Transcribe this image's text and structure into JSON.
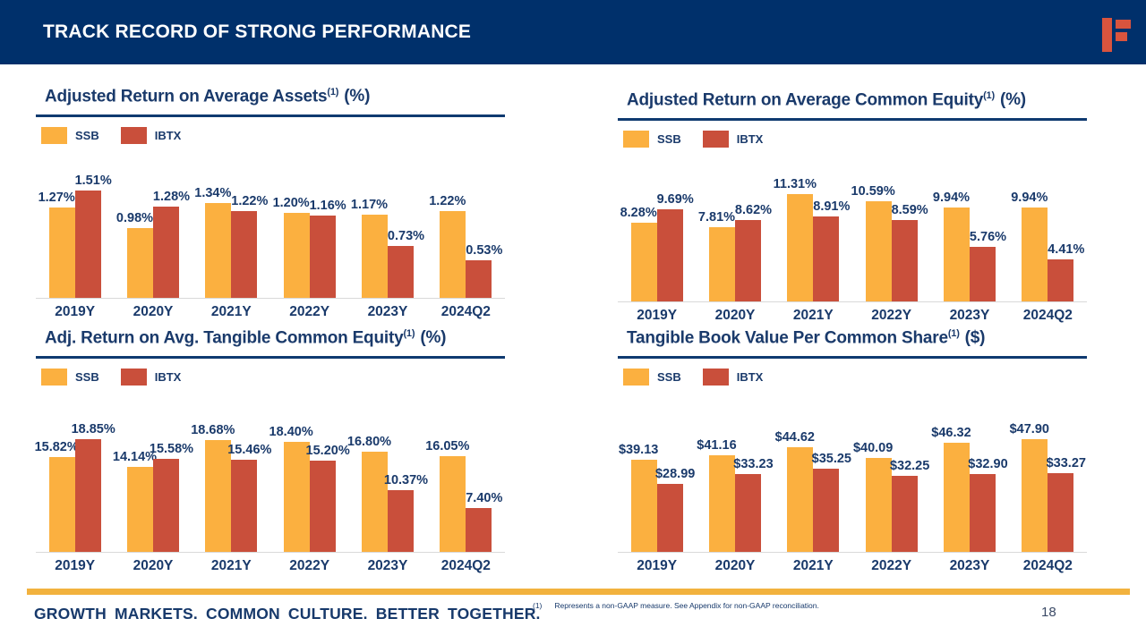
{
  "header": {
    "title": "TRACK RECORD OF STRONG PERFORMANCE"
  },
  "logo": {
    "icon": "f-blocks-logo"
  },
  "colors": {
    "header_navy": "#00306B",
    "text_navy": "#1A3A6B",
    "ssb_yellow": "#FBB040",
    "ibtx_red": "#C94F3B",
    "logo_red": "#D9543E",
    "gold_bar": "#F2B23E",
    "baseline_gray": "#D9D9D9"
  },
  "footer": {
    "motto": "GROWTH MARKETS. COMMON CULTURE. BETTER TOGETHER.",
    "footnote_marker": "(1)",
    "footnote_text": "Represents a non-GAAP measure. See Appendix for non-GAAP reconciliation.",
    "page_number": "18"
  },
  "chart_data": [
    {
      "type": "bar",
      "title": "Adjusted Return on Average Assets",
      "title_sup": "(1)",
      "title_unit": "(%)",
      "categories": [
        "2019Y",
        "2020Y",
        "2021Y",
        "2022Y",
        "2023Y",
        "2024Q2"
      ],
      "series": [
        {
          "name": "SSB",
          "values": [
            1.27,
            0.98,
            1.34,
            1.2,
            1.17,
            1.22
          ],
          "labels": [
            "1.27%",
            "0.98%",
            "1.34%",
            "1.20%",
            "1.17%",
            "1.22%"
          ]
        },
        {
          "name": "IBTX",
          "values": [
            1.51,
            1.28,
            1.22,
            1.16,
            0.73,
            0.53
          ],
          "labels": [
            "1.51%",
            "1.28%",
            "1.22%",
            "1.16%",
            "0.73%",
            "0.53%"
          ]
        }
      ],
      "ylim": [
        0,
        1.6
      ],
      "grid": false,
      "legend_position": "top-left"
    },
    {
      "type": "bar",
      "title": "Adjusted Return on Average Common Equity",
      "title_sup": "(1)",
      "title_unit": "(%)",
      "categories": [
        "2019Y",
        "2020Y",
        "2021Y",
        "2022Y",
        "2023Y",
        "2024Q2"
      ],
      "series": [
        {
          "name": "SSB",
          "values": [
            8.28,
            7.81,
            11.31,
            10.59,
            9.94,
            9.94
          ],
          "labels": [
            "8.28%",
            "7.81%",
            "11.31%",
            "10.59%",
            "9.94%",
            "9.94%"
          ]
        },
        {
          "name": "IBTX",
          "values": [
            9.69,
            8.62,
            8.91,
            8.59,
            5.76,
            4.41
          ],
          "labels": [
            "9.69%",
            "8.62%",
            "8.91%",
            "8.59%",
            "5.76%",
            "4.41%"
          ]
        }
      ],
      "ylim": [
        0,
        12
      ],
      "grid": false,
      "legend_position": "top-left"
    },
    {
      "type": "bar",
      "title": "Adj. Return on Avg. Tangible Common Equity",
      "title_sup": "(1)",
      "title_unit": "(%)",
      "categories": [
        "2019Y",
        "2020Y",
        "2021Y",
        "2022Y",
        "2023Y",
        "2024Q2"
      ],
      "series": [
        {
          "name": "SSB",
          "values": [
            15.82,
            14.14,
            18.68,
            18.4,
            16.8,
            16.05
          ],
          "labels": [
            "15.82%",
            "14.14%",
            "18.68%",
            "18.40%",
            "16.80%",
            "16.05%"
          ]
        },
        {
          "name": "IBTX",
          "values": [
            18.85,
            15.58,
            15.46,
            15.2,
            10.37,
            7.4
          ],
          "labels": [
            "18.85%",
            "15.58%",
            "15.46%",
            "15.20%",
            "10.37%",
            "7.40%"
          ]
        }
      ],
      "ylim": [
        0,
        20
      ],
      "grid": false,
      "legend_position": "top-left"
    },
    {
      "type": "bar",
      "title": "Tangible Book Value Per Common Share",
      "title_sup": "(1)",
      "title_unit": "($)",
      "categories": [
        "2019Y",
        "2020Y",
        "2021Y",
        "2022Y",
        "2023Y",
        "2024Q2"
      ],
      "series": [
        {
          "name": "SSB",
          "values": [
            39.13,
            41.16,
            44.62,
            40.09,
            46.32,
            47.9
          ],
          "labels": [
            "$39.13",
            "$41.16",
            "$44.62",
            "$40.09",
            "$46.32",
            "$47.90"
          ]
        },
        {
          "name": "IBTX",
          "values": [
            28.99,
            33.23,
            35.25,
            32.25,
            32.9,
            33.27
          ],
          "labels": [
            "$28.99",
            "$33.23",
            "$35.25",
            "$32.25",
            "$32.90",
            "$33.27"
          ]
        }
      ],
      "ylim": [
        0,
        50
      ],
      "grid": false,
      "legend_position": "top-left"
    }
  ]
}
